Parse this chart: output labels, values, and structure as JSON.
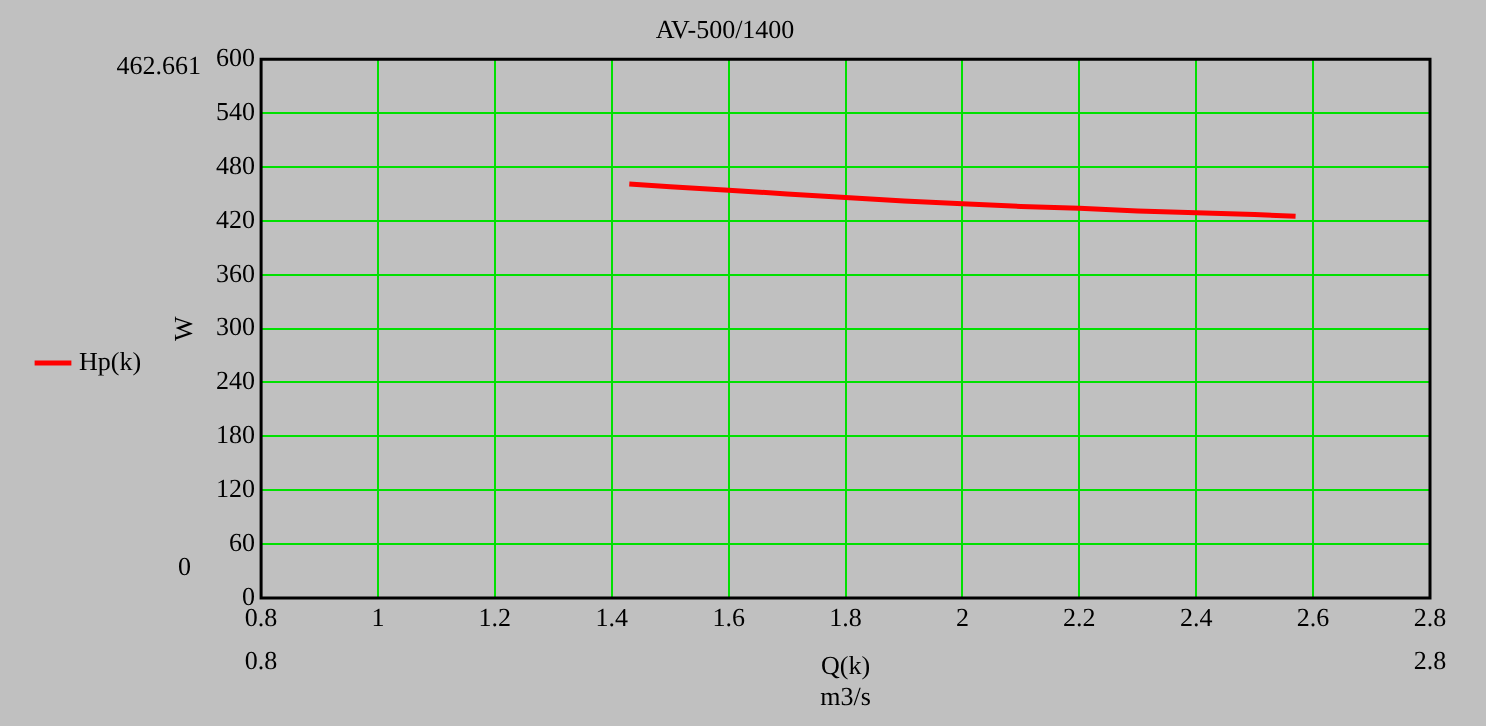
{
  "chart_data": {
    "type": "line",
    "title": "AV-500/1400",
    "xlabel": "Q(k)\nm3/s",
    "ylabel": "W",
    "x": [
      1.43,
      1.5,
      1.6,
      1.7,
      1.8,
      1.9,
      2.0,
      2.1,
      2.2,
      2.3,
      2.4,
      2.5,
      2.57
    ],
    "series": [
      {
        "name": "Hp(k)",
        "color": "#ff0000",
        "values": [
          461,
          458,
          454,
          450,
          446,
          442,
          439,
          436,
          434,
          431,
          429,
          427,
          425
        ]
      }
    ],
    "xlim": [
      0.8,
      2.8
    ],
    "xticks": [
      0.8,
      1,
      1.2,
      1.4,
      1.6,
      1.8,
      2,
      2.2,
      2.4,
      2.6,
      2.8
    ],
    "ylim": [
      0,
      600
    ],
    "yticks": [
      0,
      60,
      120,
      180,
      240,
      300,
      360,
      420,
      480,
      540,
      600
    ],
    "grid": true,
    "legend": "left",
    "marker": "none",
    "line_style": "solid",
    "annotations": [
      "462.661",
      "0",
      "0.8",
      "2.8"
    ]
  }
}
